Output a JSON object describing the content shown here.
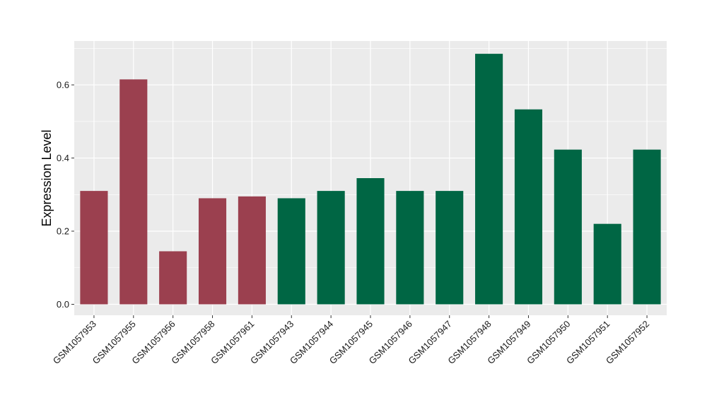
{
  "chart_data": {
    "type": "bar",
    "title": "",
    "xlabel": "",
    "ylabel": "Expression Level",
    "ylim": [
      -0.03,
      0.72
    ],
    "yticks": [
      0.0,
      0.2,
      0.4,
      0.6
    ],
    "ytick_labels": [
      "0.0",
      "0.2",
      "0.4",
      "0.6"
    ],
    "grid": true,
    "legend": "none",
    "panel_background": "#ebebeb",
    "grid_color": "#ffffff",
    "categories": [
      "GSM1057953",
      "GSM1057955",
      "GSM1057956",
      "GSM1057958",
      "GSM1057961",
      "GSM1057943",
      "GSM1057944",
      "GSM1057945",
      "GSM1057946",
      "GSM1057947",
      "GSM1057948",
      "GSM1057949",
      "GSM1057950",
      "GSM1057951",
      "GSM1057952"
    ],
    "values": [
      0.31,
      0.615,
      0.145,
      0.29,
      0.295,
      0.29,
      0.31,
      0.345,
      0.31,
      0.31,
      0.685,
      0.533,
      0.423,
      0.22,
      0.423
    ],
    "groups": [
      0,
      0,
      0,
      0,
      0,
      1,
      1,
      1,
      1,
      1,
      1,
      1,
      1,
      1,
      1
    ],
    "group_colors": [
      "#9b404f",
      "#006644"
    ]
  }
}
